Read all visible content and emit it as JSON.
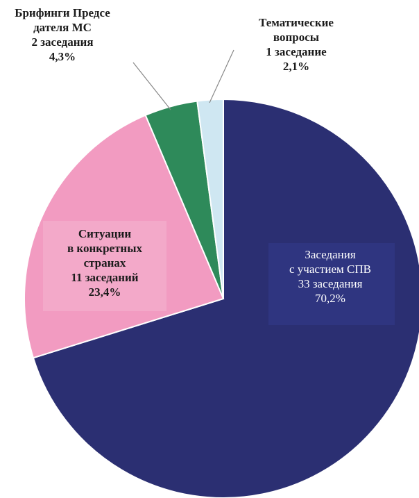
{
  "chart_data": {
    "type": "pie",
    "title": "",
    "slices": [
      {
        "label_lines": [
          "Заседания",
          "с участием СПВ",
          "33 заседания",
          "70,2%"
        ],
        "value": 70.2,
        "count": 33,
        "color": "#2b2f72"
      },
      {
        "label_lines": [
          "Ситуации",
          "в конкретных",
          "странах",
          "11 заседаний",
          "23,4%"
        ],
        "value": 23.4,
        "count": 11,
        "color": "#f29bc1"
      },
      {
        "label_lines": [
          "Брифинги Предсе",
          "дателя МС",
          "2 заседания",
          "4,3%"
        ],
        "value": 4.3,
        "count": 2,
        "color": "#2e8a5a"
      },
      {
        "label_lines": [
          "Тематические",
          "вопросы",
          "1 заседание",
          "2,1%"
        ],
        "value": 2.1,
        "count": 1,
        "color": "#cfe7f2"
      }
    ],
    "start_angle": "12 o'clock",
    "direction": "clockwise",
    "legend": "none"
  }
}
